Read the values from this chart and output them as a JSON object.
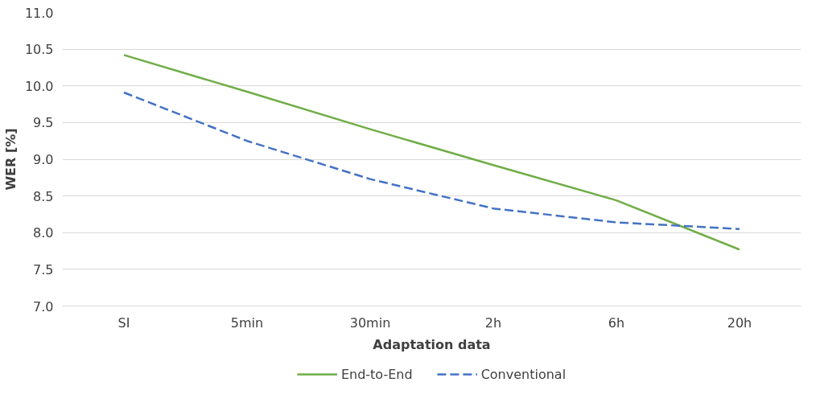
{
  "chart_data": {
    "type": "line",
    "xlabel": "Adaptation data",
    "ylabel": "WER [%]",
    "categories": [
      "SI",
      "5min",
      "30min",
      "2h",
      "6h",
      "20h"
    ],
    "series": [
      {
        "name": "End-to-End",
        "color": "#70ad47",
        "line_style": "solid",
        "values": [
          10.42,
          9.92,
          9.41,
          8.92,
          8.44,
          7.77
        ]
      },
      {
        "name": "Conventional",
        "color": "#4472c4",
        "line_style": "dashed",
        "values": [
          9.91,
          9.25,
          8.73,
          8.33,
          8.14,
          8.05
        ]
      }
    ],
    "ylim": [
      7.0,
      11.0
    ],
    "yticks": [
      {
        "value": 7.0,
        "label": "7.0"
      },
      {
        "value": 7.5,
        "label": "7.5"
      },
      {
        "value": 8.0,
        "label": "8.0"
      },
      {
        "value": 8.5,
        "label": "8.5"
      },
      {
        "value": 9.0,
        "label": "9.0"
      },
      {
        "value": 9.5,
        "label": "9.5"
      },
      {
        "value": 10.0,
        "label": "10.0"
      },
      {
        "value": 10.5,
        "label": "10.5"
      },
      {
        "value": 11.0,
        "label": "11.0"
      }
    ],
    "grid": "y",
    "legend": "bottom",
    "marker": "none"
  }
}
